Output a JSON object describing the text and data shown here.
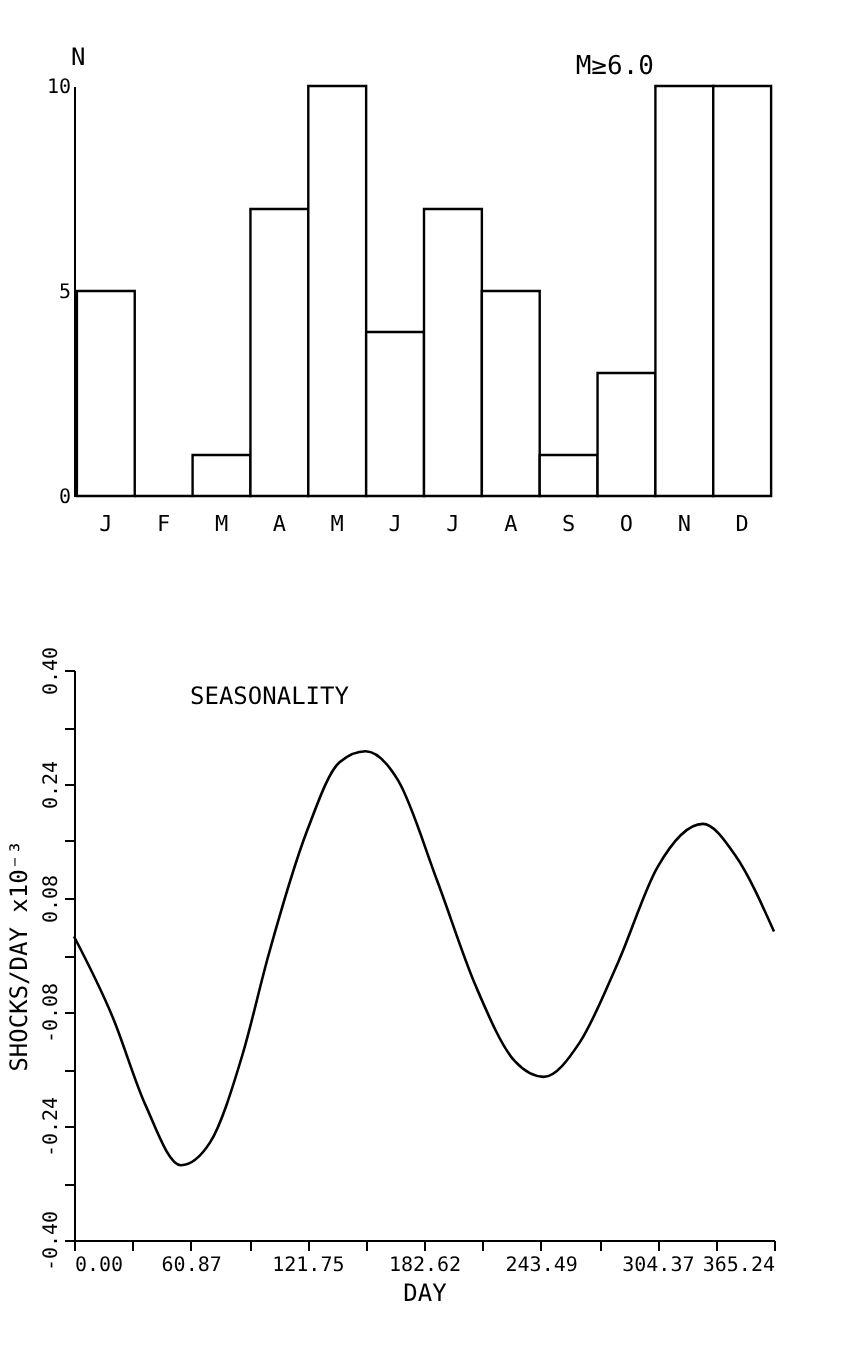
{
  "chart_data": [
    {
      "type": "bar",
      "ylabel": "N",
      "annotations": [
        "M≥6.0"
      ],
      "categories": [
        "J",
        "F",
        "M",
        "A",
        "M",
        "J",
        "J",
        "A",
        "S",
        "O",
        "N",
        "D"
      ],
      "series": [
        {
          "color": "#000000",
          "values": [
            5,
            0,
            1,
            7,
            10,
            4,
            7,
            5,
            1,
            3,
            10,
            10
          ]
        }
      ],
      "ylim": [
        0,
        10
      ],
      "yticks": [
        0,
        5,
        10
      ],
      "grid": false
    },
    {
      "type": "line",
      "xlabel": "DAY",
      "ylabel": "SHOCKS/DAY  x10⁻³",
      "annotations": [
        "SEASONALITY"
      ],
      "series": [
        {
          "color": "#000000",
          "x": [
            0,
            20.3,
            37.2,
            55.8,
            71,
            87.9,
            101.5,
            121.7,
            138.7,
            152.2,
            169.1,
            189.4,
            209.7,
            230,
            245.2,
            263.8,
            284.1,
            304.4,
            328.1,
            345,
            365.24
          ],
          "values": [
            0.026,
            -0.088,
            -0.21,
            -0.295,
            -0.263,
            -0.14,
            0.0,
            0.175,
            0.271,
            0.286,
            0.245,
            0.105,
            -0.044,
            -0.149,
            -0.171,
            -0.123,
            -0.009,
            0.123,
            0.184,
            0.14,
            0.033
          ]
        }
      ],
      "xlim": [
        0,
        365.24
      ],
      "xticks": [
        {
          "value": 0,
          "label": "0.00"
        },
        {
          "value": 30.435,
          "label": null
        },
        {
          "value": 60.87,
          "label": "60.87"
        },
        {
          "value": 91.31,
          "label": null
        },
        {
          "value": 121.75,
          "label": "121.75"
        },
        {
          "value": 152.18,
          "label": null
        },
        {
          "value": 182.62,
          "label": "182.62"
        },
        {
          "value": 213.06,
          "label": null
        },
        {
          "value": 243.49,
          "label": "243.49"
        },
        {
          "value": 273.93,
          "label": null
        },
        {
          "value": 304.37,
          "label": "304.37"
        },
        {
          "value": 334.8,
          "label": null
        },
        {
          "value": 365.24,
          "label": "365.24"
        }
      ],
      "ylim": [
        -0.4,
        0.4
      ],
      "yticks": [
        {
          "value": -0.4,
          "label": "-0.40"
        },
        {
          "value": -0.32,
          "label": null
        },
        {
          "value": -0.24,
          "label": "-0.24"
        },
        {
          "value": -0.16,
          "label": null
        },
        {
          "value": -0.08,
          "label": "-0.08"
        },
        {
          "value": 0,
          "label": null
        },
        {
          "value": 0.08,
          "label": "0.08"
        },
        {
          "value": 0.16,
          "label": null
        },
        {
          "value": 0.24,
          "label": "0.24"
        },
        {
          "value": 0.32,
          "label": null
        },
        {
          "value": 0.4,
          "label": "0.40"
        }
      ],
      "grid": false,
      "marker": "none",
      "line_style": "solid"
    }
  ]
}
